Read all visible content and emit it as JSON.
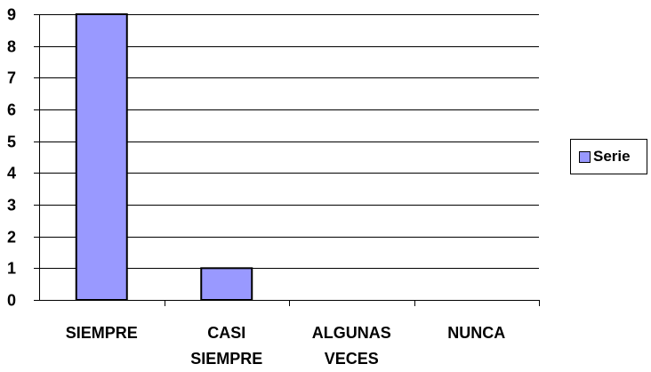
{
  "chart_data": {
    "type": "bar",
    "categories": [
      [
        "SIEMPRE"
      ],
      [
        "CASI",
        "SIEMPRE"
      ],
      [
        "ALGUNAS",
        "VECES"
      ],
      [
        "NUNCA"
      ]
    ],
    "series": [
      {
        "name": "Serie",
        "values": [
          9,
          1,
          0,
          0
        ]
      }
    ],
    "yticks": [
      "0",
      "1",
      "2",
      "3",
      "4",
      "5",
      "6",
      "7",
      "8",
      "9"
    ],
    "ylim": [
      0,
      9
    ],
    "grid": true,
    "legend_position": "right",
    "colors": {
      "bar": "#9999FF",
      "bar_border": "#000000",
      "axis": "#000000",
      "grid": "#000000"
    }
  }
}
